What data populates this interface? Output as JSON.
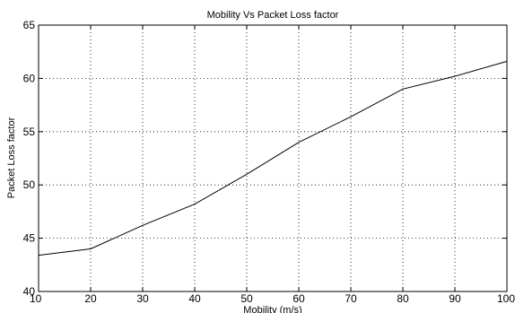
{
  "chart_data": {
    "type": "line",
    "title": "Mobility Vs Packet Loss factor",
    "xlabel": "Mobility  (m/s)",
    "ylabel": "Packet Loss factor",
    "x": [
      10,
      20,
      30,
      40,
      50,
      60,
      70,
      80,
      90,
      100
    ],
    "series": [
      {
        "values": [
          43.4,
          44.0,
          46.2,
          48.2,
          51.0,
          54.0,
          56.4,
          59.0,
          60.2,
          61.6
        ]
      }
    ],
    "xlim": [
      10,
      100
    ],
    "ylim": [
      40,
      65
    ],
    "xticks": [
      10,
      20,
      30,
      40,
      50,
      60,
      70,
      80,
      90,
      100
    ],
    "yticks": [
      40,
      45,
      50,
      55,
      60,
      65
    ],
    "grid": true,
    "line_color": "#000000",
    "grid_color": "#000000"
  }
}
